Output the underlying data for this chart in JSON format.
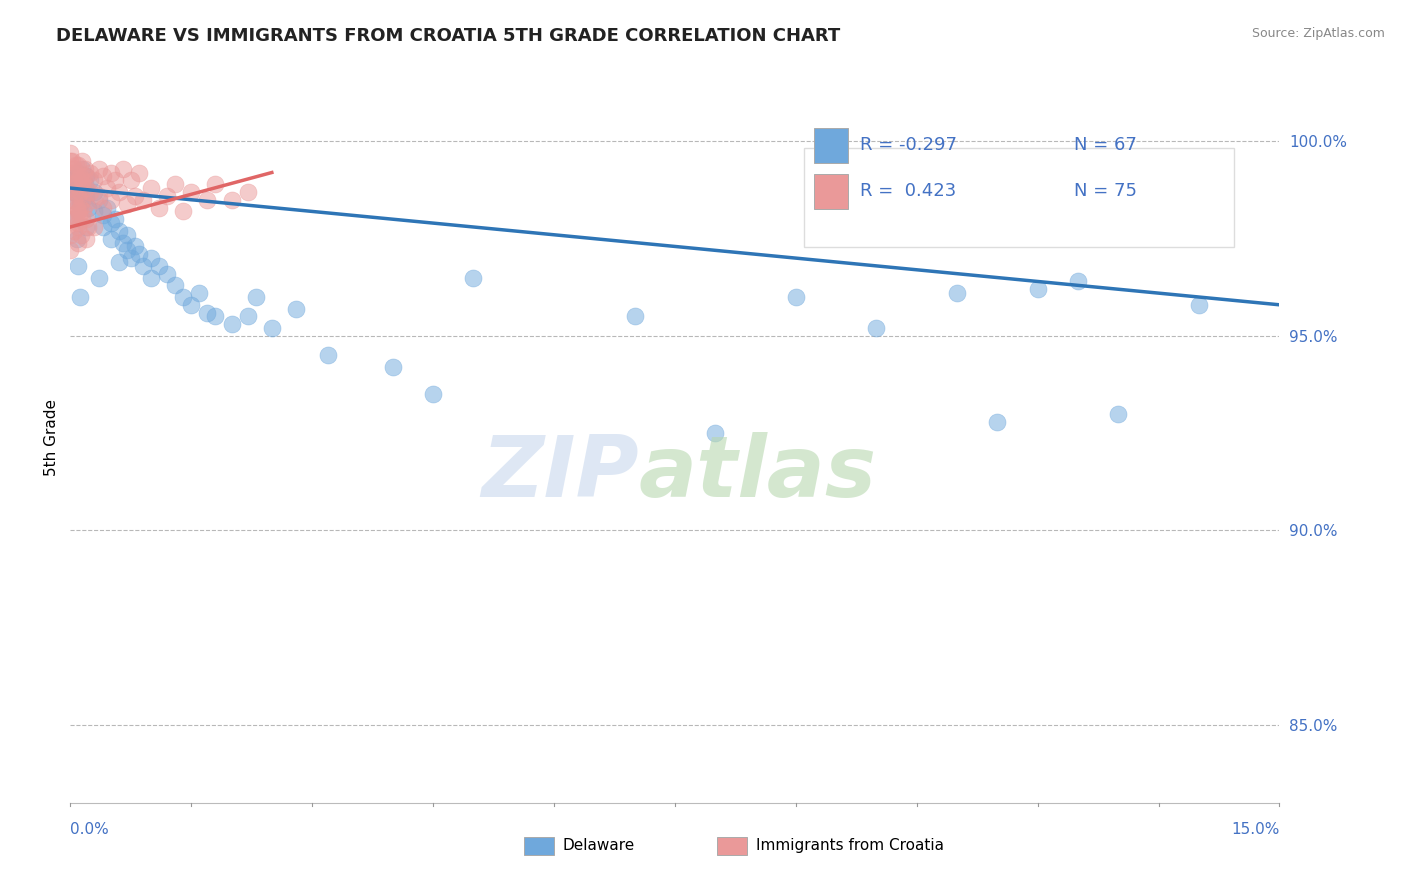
{
  "title": "DELAWARE VS IMMIGRANTS FROM CROATIA 5TH GRADE CORRELATION CHART",
  "source_text": "Source: ZipAtlas.com",
  "ylabel": "5th Grade",
  "xmin": 0.0,
  "xmax": 15.0,
  "ymin": 83.0,
  "ymax": 101.8,
  "yticks": [
    85.0,
    90.0,
    95.0,
    100.0
  ],
  "ytick_labels": [
    "85.0%",
    "90.0%",
    "95.0%",
    "100.0%"
  ],
  "blue_color": "#6fa8dc",
  "pink_color": "#ea9999",
  "blue_line_color": "#2E75B6",
  "pink_line_color": "#E06666",
  "delaware_points": [
    [
      0.0,
      99.1
    ],
    [
      0.0,
      98.5
    ],
    [
      0.05,
      99.0
    ],
    [
      0.05,
      98.7
    ],
    [
      0.1,
      99.2
    ],
    [
      0.1,
      98.8
    ],
    [
      0.12,
      98.4
    ],
    [
      0.15,
      99.3
    ],
    [
      0.15,
      98.5
    ],
    [
      0.18,
      98.9
    ],
    [
      0.2,
      99.1
    ],
    [
      0.2,
      98.6
    ],
    [
      0.22,
      98.3
    ],
    [
      0.25,
      99.0
    ],
    [
      0.3,
      98.7
    ],
    [
      0.3,
      98.2
    ],
    [
      0.35,
      98.5
    ],
    [
      0.4,
      98.1
    ],
    [
      0.4,
      97.8
    ],
    [
      0.45,
      98.3
    ],
    [
      0.5,
      97.9
    ],
    [
      0.5,
      97.5
    ],
    [
      0.55,
      98.0
    ],
    [
      0.6,
      97.7
    ],
    [
      0.65,
      97.4
    ],
    [
      0.7,
      97.2
    ],
    [
      0.7,
      97.6
    ],
    [
      0.75,
      97.0
    ],
    [
      0.8,
      97.3
    ],
    [
      0.85,
      97.1
    ],
    [
      0.9,
      96.8
    ],
    [
      1.0,
      97.0
    ],
    [
      1.0,
      96.5
    ],
    [
      1.1,
      96.8
    ],
    [
      1.2,
      96.6
    ],
    [
      1.3,
      96.3
    ],
    [
      1.4,
      96.0
    ],
    [
      1.5,
      95.8
    ],
    [
      1.6,
      96.1
    ],
    [
      1.7,
      95.6
    ],
    [
      1.8,
      95.5
    ],
    [
      2.0,
      95.3
    ],
    [
      2.2,
      95.5
    ],
    [
      2.3,
      96.0
    ],
    [
      2.5,
      95.2
    ],
    [
      2.8,
      95.7
    ],
    [
      3.2,
      94.5
    ],
    [
      4.0,
      94.2
    ],
    [
      4.5,
      93.5
    ],
    [
      5.0,
      96.5
    ],
    [
      7.0,
      95.5
    ],
    [
      8.0,
      92.5
    ],
    [
      9.0,
      96.0
    ],
    [
      10.0,
      95.2
    ],
    [
      11.0,
      96.1
    ],
    [
      11.5,
      92.8
    ],
    [
      12.0,
      96.2
    ],
    [
      12.5,
      96.4
    ],
    [
      13.0,
      93.0
    ],
    [
      14.0,
      95.8
    ],
    [
      0.05,
      98.0
    ],
    [
      0.08,
      97.5
    ],
    [
      0.1,
      96.8
    ],
    [
      0.12,
      96.0
    ],
    [
      0.2,
      97.8
    ],
    [
      0.35,
      96.5
    ],
    [
      0.6,
      96.9
    ]
  ],
  "croatia_points": [
    [
      0.0,
      99.5
    ],
    [
      0.0,
      99.2
    ],
    [
      0.0,
      98.8
    ],
    [
      0.0,
      98.4
    ],
    [
      0.0,
      98.0
    ],
    [
      0.0,
      97.6
    ],
    [
      0.0,
      97.2
    ],
    [
      0.05,
      99.3
    ],
    [
      0.05,
      98.9
    ],
    [
      0.05,
      98.5
    ],
    [
      0.05,
      98.1
    ],
    [
      0.05,
      97.7
    ],
    [
      0.1,
      99.4
    ],
    [
      0.1,
      99.0
    ],
    [
      0.1,
      98.6
    ],
    [
      0.1,
      98.2
    ],
    [
      0.1,
      97.9
    ],
    [
      0.12,
      99.1
    ],
    [
      0.12,
      98.7
    ],
    [
      0.12,
      98.3
    ],
    [
      0.15,
      99.5
    ],
    [
      0.15,
      99.0
    ],
    [
      0.15,
      98.5
    ],
    [
      0.15,
      98.0
    ],
    [
      0.18,
      99.3
    ],
    [
      0.2,
      99.1
    ],
    [
      0.2,
      98.8
    ],
    [
      0.2,
      98.4
    ],
    [
      0.2,
      98.0
    ],
    [
      0.2,
      97.5
    ],
    [
      0.25,
      99.2
    ],
    [
      0.25,
      98.7
    ],
    [
      0.3,
      99.0
    ],
    [
      0.3,
      98.5
    ],
    [
      0.3,
      97.8
    ],
    [
      0.35,
      99.3
    ],
    [
      0.35,
      98.6
    ],
    [
      0.4,
      99.1
    ],
    [
      0.4,
      98.3
    ],
    [
      0.45,
      98.8
    ],
    [
      0.5,
      99.2
    ],
    [
      0.5,
      98.5
    ],
    [
      0.55,
      99.0
    ],
    [
      0.6,
      98.7
    ],
    [
      0.65,
      99.3
    ],
    [
      0.7,
      98.4
    ],
    [
      0.75,
      99.0
    ],
    [
      0.8,
      98.6
    ],
    [
      0.85,
      99.2
    ],
    [
      0.9,
      98.5
    ],
    [
      1.0,
      98.8
    ],
    [
      1.1,
      98.3
    ],
    [
      1.2,
      98.6
    ],
    [
      1.3,
      98.9
    ],
    [
      1.4,
      98.2
    ],
    [
      1.5,
      98.7
    ],
    [
      1.7,
      98.5
    ],
    [
      1.8,
      98.9
    ],
    [
      2.0,
      98.5
    ],
    [
      2.2,
      98.7
    ],
    [
      0.0,
      99.7
    ],
    [
      0.02,
      99.5
    ],
    [
      0.03,
      99.2
    ],
    [
      0.04,
      99.0
    ],
    [
      0.06,
      98.7
    ],
    [
      0.07,
      99.4
    ],
    [
      0.08,
      98.3
    ],
    [
      0.09,
      97.8
    ],
    [
      0.1,
      97.4
    ],
    [
      0.11,
      98.1
    ],
    [
      0.13,
      97.6
    ],
    [
      0.14,
      98.9
    ],
    [
      0.16,
      98.2
    ],
    [
      0.17,
      99.1
    ],
    [
      0.22,
      97.8
    ]
  ],
  "blue_trend_x": [
    0.0,
    15.0
  ],
  "blue_trend_y": [
    98.8,
    95.8
  ],
  "pink_trend_x": [
    0.0,
    2.5
  ],
  "pink_trend_y": [
    97.8,
    99.2
  ]
}
